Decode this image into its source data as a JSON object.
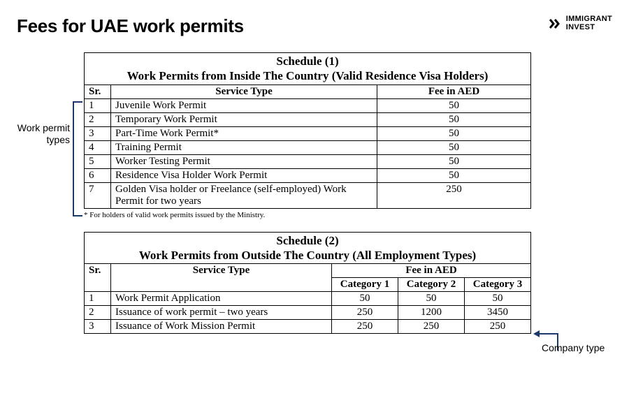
{
  "page": {
    "title": "Fees for UAE work permits",
    "brand_line1": "IMMIGRANT",
    "brand_line2": "INVEST",
    "brand_color": "#000000",
    "accent_color": "#1b3a6b"
  },
  "annotations": {
    "left_label": "Work permit types",
    "right_label": "Company type"
  },
  "schedule1": {
    "heading_line1": "Schedule (1)",
    "heading_line2": "Work Permits from Inside The Country (Valid Residence Visa Holders)",
    "columns": {
      "sr": "Sr.",
      "service": "Service Type",
      "fee": "Fee in AED"
    },
    "rows": [
      {
        "sr": "1",
        "service": "Juvenile Work Permit",
        "fee": "50"
      },
      {
        "sr": "2",
        "service": "Temporary Work Permit",
        "fee": "50"
      },
      {
        "sr": "3",
        "service": "Part-Time Work Permit*",
        "fee": "50"
      },
      {
        "sr": "4",
        "service": "Training Permit",
        "fee": "50"
      },
      {
        "sr": "5",
        "service": "Worker Testing Permit",
        "fee": "50"
      },
      {
        "sr": "6",
        "service": "Residence Visa Holder Work Permit",
        "fee": "50"
      },
      {
        "sr": "7",
        "service": "Golden Visa holder or Freelance (self-employed) Work Permit for two years",
        "fee": "250"
      }
    ],
    "footnote": "* For holders of valid work permits issued by the Ministry."
  },
  "schedule2": {
    "heading_line1": "Schedule (2)",
    "heading_line2": "Work Permits from Outside The Country (All Employment Types)",
    "columns": {
      "sr": "Sr.",
      "service": "Service Type",
      "fee": "Fee in AED",
      "cat1": "Category 1",
      "cat2": "Category 2",
      "cat3": "Category 3"
    },
    "rows": [
      {
        "sr": "1",
        "service": "Work Permit Application",
        "c1": "50",
        "c2": "50",
        "c3": "50"
      },
      {
        "sr": "2",
        "service": "Issuance of work permit – two years",
        "c1": "250",
        "c2": "1200",
        "c3": "3450"
      },
      {
        "sr": "3",
        "service": "Issuance of Work Mission Permit",
        "c1": "250",
        "c2": "250",
        "c3": "250"
      }
    ]
  }
}
